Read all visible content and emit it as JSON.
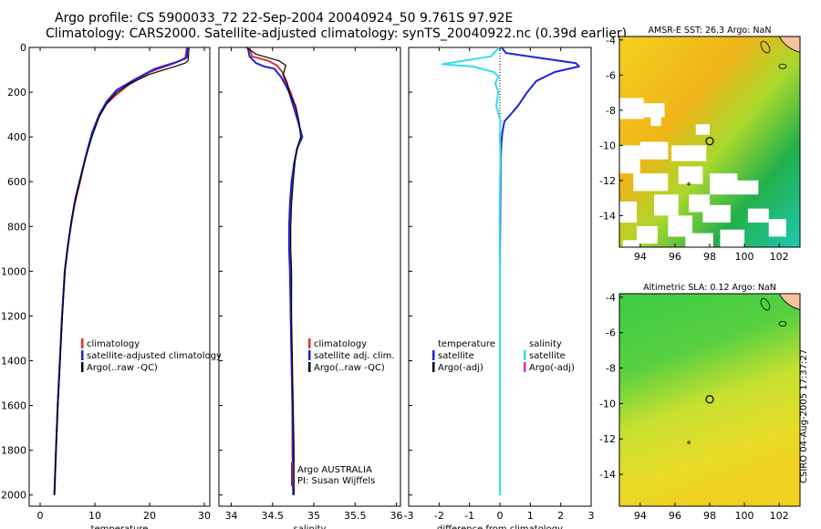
{
  "title_line1": "Argo profile: CS 5900033_72 22-Sep-2004 20040924_50 9.761S 97.92E",
  "title_line2": "Climatology: CARS2000. Satellite-adjusted climatology: synTS_20040922.nc (0.39d earlier)",
  "timestamp": "CSIRO 04-Aug-2005 17:37:27",
  "colors": {
    "climatology": "#e03030",
    "satellite": "#1c24d8",
    "argo": "#000000",
    "sat_diff_sal": "#33ddee",
    "argo_adj_sal": "#cc33cc",
    "land": "#f4c49a"
  },
  "chart_data": [
    {
      "type": "line",
      "name": "temperature-profile",
      "xlabel": "temperature",
      "ylabel": "",
      "xlim": [
        -2,
        31
      ],
      "ylim": [
        2050,
        0
      ],
      "xticks": [
        0,
        10,
        20,
        30
      ],
      "yticks": [
        0,
        200,
        400,
        600,
        800,
        1000,
        1200,
        1400,
        1600,
        1800,
        2000
      ],
      "legend": [
        "climatology",
        "satellite-adjusted climatology",
        "Argo(..raw -QC)"
      ],
      "series": [
        {
          "name": "climatology",
          "color": "#e03030",
          "points": [
            [
              26.8,
              0
            ],
            [
              26.5,
              50
            ],
            [
              24,
              75
            ],
            [
              20,
              110
            ],
            [
              16,
              170
            ],
            [
              13.5,
              220
            ],
            [
              11.8,
              260
            ],
            [
              10.5,
              320
            ],
            [
              9.3,
              400
            ],
            [
              8.2,
              500
            ],
            [
              7.3,
              600
            ],
            [
              6.3,
              700
            ],
            [
              5.6,
              800
            ],
            [
              5,
              900
            ],
            [
              4.5,
              1000
            ],
            [
              4,
              1200
            ],
            [
              3.6,
              1400
            ],
            [
              3.2,
              1600
            ],
            [
              2.9,
              1800
            ],
            [
              2.6,
              2000
            ]
          ]
        },
        {
          "name": "satellite-adjusted climatology",
          "color": "#1c24d8",
          "points": [
            [
              26.9,
              0
            ],
            [
              26.8,
              45
            ],
            [
              25,
              65
            ],
            [
              21,
              95
            ],
            [
              17.5,
              140
            ],
            [
              14,
              190
            ],
            [
              12.2,
              240
            ],
            [
              10.8,
              300
            ],
            [
              9.5,
              380
            ],
            [
              8.4,
              480
            ],
            [
              7.4,
              580
            ],
            [
              6.4,
              680
            ],
            [
              5.7,
              780
            ],
            [
              5.1,
              880
            ],
            [
              4.5,
              1000
            ],
            [
              4,
              1200
            ],
            [
              3.6,
              1400
            ],
            [
              3.2,
              1600
            ],
            [
              2.9,
              1800
            ],
            [
              2.6,
              2000
            ]
          ]
        },
        {
          "name": "Argo(..raw -QC)",
          "color": "#000000",
          "points": [
            [
              27.2,
              0
            ],
            [
              27.1,
              40
            ],
            [
              27,
              60
            ],
            [
              26.5,
              70
            ],
            [
              24,
              90
            ],
            [
              20,
              120
            ],
            [
              16.5,
              160
            ],
            [
              14,
              200
            ],
            [
              12.2,
              250
            ],
            [
              10.8,
              310
            ],
            [
              9.6,
              390
            ],
            [
              8.6,
              470
            ],
            [
              7.6,
              560
            ],
            [
              6.6,
              660
            ],
            [
              5.8,
              760
            ],
            [
              5.1,
              880
            ],
            [
              4.6,
              980
            ],
            [
              4.1,
              1180
            ],
            [
              3.7,
              1380
            ],
            [
              3.3,
              1580
            ],
            [
              2.9,
              1780
            ],
            [
              2.6,
              2000
            ]
          ]
        }
      ]
    },
    {
      "type": "line",
      "name": "salinity-profile",
      "xlabel": "salinity",
      "ylabel": "",
      "xlim": [
        33.85,
        36.05
      ],
      "ylim": [
        2050,
        0
      ],
      "xticks": [
        34,
        34.5,
        35,
        35.5,
        36
      ],
      "legend": [
        "climatology",
        "satellite adj. clim.",
        "Argo(..raw -QC)"
      ],
      "annotation": [
        "Argo AUSTRALIA",
        "PI: Susan Wijffels"
      ],
      "series": [
        {
          "name": "climatology",
          "color": "#e03030",
          "points": [
            [
              34.22,
              0
            ],
            [
              34.25,
              40
            ],
            [
              34.45,
              60
            ],
            [
              34.55,
              80
            ],
            [
              34.62,
              110
            ],
            [
              34.65,
              150
            ],
            [
              34.72,
              200
            ],
            [
              34.77,
              260
            ],
            [
              34.81,
              320
            ],
            [
              34.85,
              400
            ],
            [
              34.8,
              450
            ],
            [
              34.76,
              520
            ],
            [
              34.74,
              600
            ],
            [
              34.72,
              700
            ],
            [
              34.71,
              800
            ],
            [
              34.71,
              900
            ],
            [
              34.72,
              1000
            ],
            [
              34.72,
              1200
            ],
            [
              34.73,
              1400
            ],
            [
              34.74,
              1600
            ],
            [
              34.74,
              1800
            ],
            [
              34.75,
              2000
            ]
          ]
        },
        {
          "name": "satellite adj. clim.",
          "color": "#1c24d8",
          "points": [
            [
              34.2,
              0
            ],
            [
              34.22,
              40
            ],
            [
              34.3,
              70
            ],
            [
              34.4,
              85
            ],
            [
              34.52,
              95
            ],
            [
              34.6,
              130
            ],
            [
              34.66,
              170
            ],
            [
              34.7,
              200
            ],
            [
              34.75,
              260
            ],
            [
              34.8,
              320
            ],
            [
              34.86,
              400
            ],
            [
              34.8,
              450
            ],
            [
              34.76,
              520
            ],
            [
              34.73,
              600
            ],
            [
              34.71,
              700
            ],
            [
              34.7,
              800
            ],
            [
              34.7,
              900
            ],
            [
              34.71,
              1000
            ],
            [
              34.72,
              1200
            ],
            [
              34.73,
              1400
            ],
            [
              34.74,
              1600
            ],
            [
              34.75,
              1800
            ],
            [
              34.75,
              2000
            ]
          ]
        },
        {
          "name": "Argo(..raw -QC)",
          "color": "#000000",
          "points": [
            [
              34.18,
              0
            ],
            [
              34.3,
              30
            ],
            [
              34.58,
              60
            ],
            [
              34.66,
              80
            ],
            [
              34.63,
              120
            ],
            [
              34.68,
              160
            ],
            [
              34.7,
              200
            ],
            [
              34.78,
              260
            ],
            [
              34.82,
              330
            ],
            [
              34.84,
              400
            ],
            [
              34.79,
              460
            ],
            [
              34.77,
              520
            ],
            [
              34.75,
              600
            ],
            [
              34.73,
              700
            ],
            [
              34.72,
              800
            ],
            [
              34.72,
              900
            ],
            [
              34.73,
              1000
            ],
            [
              34.73,
              1200
            ],
            [
              34.74,
              1400
            ],
            [
              34.75,
              1600
            ],
            [
              34.76,
              1800
            ],
            [
              34.76,
              2000
            ]
          ]
        }
      ]
    },
    {
      "type": "line",
      "name": "difference-profile",
      "xlabel": "difference from climatology",
      "ylabel": "",
      "xlim": [
        -3,
        3
      ],
      "ylim": [
        2050,
        0
      ],
      "xticks": [
        -3,
        -2,
        -1,
        0,
        1,
        2,
        3
      ],
      "legend_left": [
        "temperature",
        "satellite",
        "Argo(-adj)"
      ],
      "legend_right": [
        "salinity",
        "satellite",
        "Argo(-adj)"
      ],
      "series": [
        {
          "name": "temperature satellite",
          "color": "#1c24d8",
          "points": [
            [
              0.05,
              0
            ],
            [
              0.2,
              25
            ],
            [
              1.2,
              45
            ],
            [
              2.5,
              70
            ],
            [
              2.6,
              85
            ],
            [
              1.8,
              110
            ],
            [
              1.2,
              150
            ],
            [
              0.9,
              200
            ],
            [
              0.6,
              260
            ],
            [
              0.35,
              300
            ],
            [
              0.15,
              330
            ],
            [
              0.08,
              380
            ],
            [
              0.05,
              420
            ],
            [
              0.03,
              500
            ],
            [
              0.02,
              600
            ],
            [
              0.01,
              800
            ],
            [
              0,
              1000
            ],
            [
              0,
              2000
            ]
          ]
        },
        {
          "name": "salinity satellite",
          "color": "#33ddee",
          "points": [
            [
              -0.02,
              0
            ],
            [
              -0.3,
              40
            ],
            [
              -1.9,
              75
            ],
            [
              -0.9,
              85
            ],
            [
              -0.2,
              110
            ],
            [
              -0.05,
              130
            ],
            [
              -0.15,
              160
            ],
            [
              -0.05,
              200
            ],
            [
              -0.12,
              260
            ],
            [
              0.02,
              330
            ],
            [
              0,
              400
            ],
            [
              0.02,
              500
            ],
            [
              0,
              600
            ],
            [
              -0.01,
              800
            ],
            [
              0,
              1000
            ],
            [
              0,
              1400
            ],
            [
              0,
              1800
            ],
            [
              0,
              2000
            ]
          ]
        }
      ]
    },
    {
      "type": "heatmap",
      "name": "sst-map",
      "title": "AMSR-E SST: 26.3 Argo: NaN",
      "xlim": [
        92.8,
        103.2
      ],
      "ylim": [
        -15.8,
        -3.8
      ],
      "xticks": [
        94,
        96,
        98,
        100,
        102
      ],
      "yticks": [
        -4,
        -6,
        -8,
        -10,
        -12,
        -14
      ],
      "float_position": [
        98,
        -9.76
      ]
    },
    {
      "type": "heatmap",
      "name": "sla-map",
      "title": "Altimetric SLA: 0.12 Argo: NaN",
      "xlim": [
        92.8,
        103.2
      ],
      "ylim": [
        -15.8,
        -3.8
      ],
      "xticks": [
        94,
        96,
        98,
        100,
        102
      ],
      "yticks": [
        -4,
        -6,
        -8,
        -10,
        -12,
        -14
      ],
      "float_position": [
        98,
        -9.76
      ]
    }
  ]
}
